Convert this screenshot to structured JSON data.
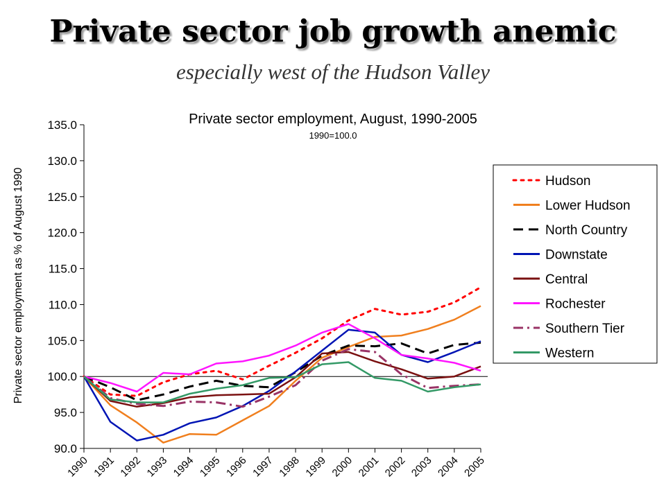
{
  "slide": {
    "title": "Private sector job growth anemic",
    "subtitle": "especially west of the Hudson Valley"
  },
  "chart_data": {
    "type": "line",
    "title": "Private sector employment, August, 1990-2005",
    "subtitle": "1990=100.0",
    "xlabel": "",
    "ylabel": "Private sector employment as % of August 1990",
    "ylim": [
      90,
      135
    ],
    "yticks": [
      "135.0",
      "130.0",
      "125.0",
      "120.0",
      "115.0",
      "110.0",
      "105.0",
      "100.0",
      "95.0",
      "90.0"
    ],
    "ytick_values": [
      135,
      130,
      125,
      120,
      115,
      110,
      105,
      100,
      95,
      90
    ],
    "categories": [
      "1990",
      "1991",
      "1992",
      "1993",
      "1994",
      "1995",
      "1996",
      "1997",
      "1998",
      "1999",
      "2000",
      "2001",
      "2002",
      "2003",
      "2004",
      "2005"
    ],
    "reference_line": 100,
    "grid": false,
    "legend_position": "right",
    "series": [
      {
        "name": "Hudson",
        "color": "#ff0000",
        "dash": "dotted",
        "values": [
          100.0,
          97.5,
          97.3,
          99.2,
          100.3,
          100.8,
          99.6,
          101.5,
          103.3,
          105.3,
          107.8,
          109.4,
          108.6,
          109.0,
          110.3,
          112.4
        ]
      },
      {
        "name": "Lower Hudson",
        "color": "#f07f1e",
        "dash": "solid",
        "values": [
          100.0,
          96.0,
          93.6,
          90.8,
          92.0,
          91.9,
          93.9,
          95.9,
          99.4,
          102.6,
          104.1,
          105.5,
          105.7,
          106.6,
          107.9,
          109.8
        ]
      },
      {
        "name": "North Country",
        "color": "#000000",
        "dash": "dashed",
        "values": [
          100.0,
          98.5,
          96.7,
          97.5,
          98.6,
          99.4,
          98.7,
          98.5,
          100.6,
          102.9,
          104.3,
          104.2,
          104.6,
          103.2,
          104.4,
          104.7
        ]
      },
      {
        "name": "Downstate",
        "color": "#0014b4",
        "dash": "solid",
        "values": [
          100.0,
          93.7,
          91.1,
          91.9,
          93.5,
          94.3,
          95.9,
          98.0,
          100.7,
          103.6,
          106.5,
          106.1,
          103.0,
          102.0,
          103.4,
          104.9
        ]
      },
      {
        "name": "Central",
        "color": "#7a1010",
        "dash": "solid",
        "values": [
          100.0,
          96.6,
          95.8,
          96.3,
          97.1,
          97.4,
          97.5,
          97.6,
          99.9,
          103.2,
          103.4,
          102.1,
          101.0,
          99.7,
          100.0,
          101.4
        ]
      },
      {
        "name": "Rochester",
        "color": "#ff14ff",
        "dash": "solid",
        "values": [
          100.0,
          99.1,
          97.9,
          100.5,
          100.3,
          101.8,
          102.1,
          102.9,
          104.3,
          106.1,
          107.3,
          105.3,
          103.0,
          102.5,
          101.9,
          100.8
        ]
      },
      {
        "name": "Southern Tier",
        "color": "#993366",
        "dash": "dashdot",
        "values": [
          100.0,
          97.0,
          96.2,
          95.9,
          96.5,
          96.4,
          95.8,
          97.2,
          98.8,
          102.2,
          103.8,
          103.4,
          100.3,
          98.4,
          98.7,
          98.9
        ]
      },
      {
        "name": "Western",
        "color": "#339966",
        "dash": "solid",
        "values": [
          100.0,
          96.8,
          96.4,
          96.4,
          97.6,
          98.3,
          98.8,
          99.8,
          99.9,
          101.7,
          102.0,
          99.8,
          99.4,
          97.9,
          98.5,
          98.9
        ]
      }
    ]
  }
}
